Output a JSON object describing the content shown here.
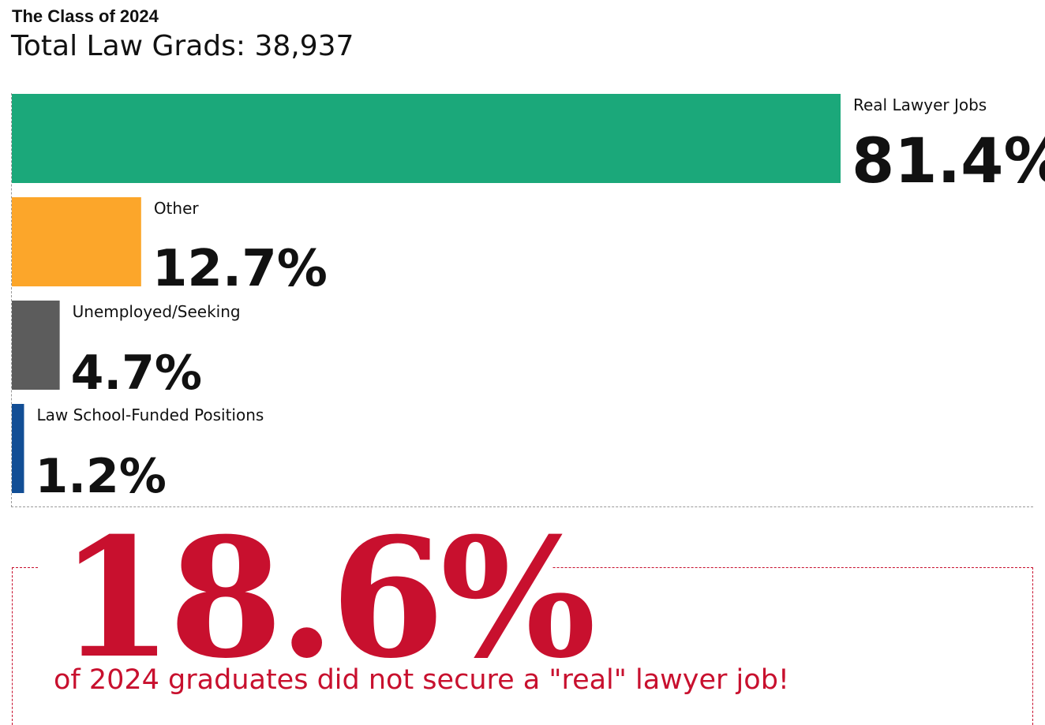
{
  "header": {
    "subtitle": "The Class of 2024",
    "title": "Total Law Grads: 38,937"
  },
  "chart_data": {
    "type": "bar",
    "orientation": "horizontal",
    "categories": [
      "Real Lawyer Jobs",
      "Other",
      "Unemployed/Seeking",
      "Law School-Funded Positions"
    ],
    "values": [
      81.4,
      12.7,
      4.7,
      1.2
    ],
    "value_labels": [
      "81.4%",
      "12.7%",
      "4.7%",
      "1.2%"
    ],
    "colors": [
      "#1ba87a",
      "#fca62a",
      "#5c5c5c",
      "#124e95"
    ],
    "title": "Total Law Grads: 38,937",
    "subtitle": "The Class of 2024",
    "xlim": [
      0,
      100
    ],
    "grid": false,
    "legend": "none"
  },
  "callout": {
    "value": "18.6%",
    "text": "of 2024 graduates did not secure a \"real\" lawyer job!",
    "color": "#c8102e"
  }
}
